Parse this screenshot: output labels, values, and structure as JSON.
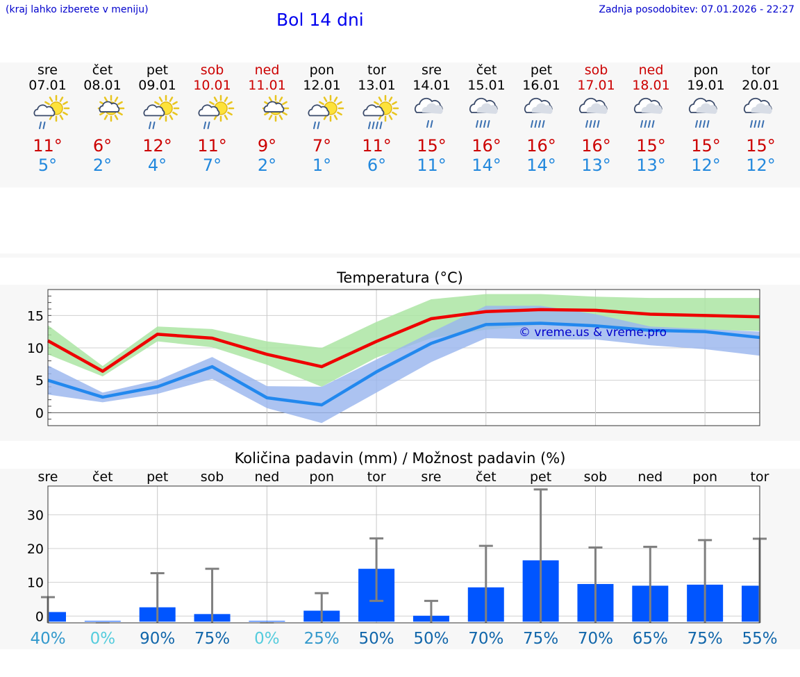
{
  "header": {
    "hint": "(kraj lahko izberete v meniju)",
    "title": "Bol 14 dni",
    "updated": "Zadnja posodobitev: 07.01.2026 - 22:27"
  },
  "days": [
    {
      "name": "sre",
      "date": "07.01",
      "weekend": false,
      "icon": "sun-cloud-rain-icon",
      "tmax": "11°",
      "tmin": "5°"
    },
    {
      "name": "čet",
      "date": "08.01",
      "weekend": false,
      "icon": "sun-cloud-icon",
      "tmax": "6°",
      "tmin": "2°"
    },
    {
      "name": "pet",
      "date": "09.01",
      "weekend": false,
      "icon": "sun-cloud-rain-icon",
      "tmax": "12°",
      "tmin": "4°"
    },
    {
      "name": "sob",
      "date": "10.01",
      "weekend": true,
      "icon": "sun-cloud-rain-icon",
      "tmax": "11°",
      "tmin": "7°"
    },
    {
      "name": "ned",
      "date": "11.01",
      "weekend": true,
      "icon": "sun-cloud-icon",
      "tmax": "9°",
      "tmin": "2°"
    },
    {
      "name": "pon",
      "date": "12.01",
      "weekend": false,
      "icon": "sun-cloud-rain-icon",
      "tmax": "7°",
      "tmin": "1°"
    },
    {
      "name": "tor",
      "date": "13.01",
      "weekend": false,
      "icon": "sun-cloud-heavy-rain-icon",
      "tmax": "11°",
      "tmin": "6°"
    },
    {
      "name": "sre",
      "date": "14.01",
      "weekend": false,
      "icon": "cloud-rain-icon",
      "tmax": "15°",
      "tmin": "11°"
    },
    {
      "name": "čet",
      "date": "15.01",
      "weekend": false,
      "icon": "cloud-heavy-rain-icon",
      "tmax": "16°",
      "tmin": "14°"
    },
    {
      "name": "pet",
      "date": "16.01",
      "weekend": false,
      "icon": "cloud-heavy-rain-icon",
      "tmax": "16°",
      "tmin": "14°"
    },
    {
      "name": "sob",
      "date": "17.01",
      "weekend": true,
      "icon": "cloud-heavy-rain-icon",
      "tmax": "16°",
      "tmin": "13°"
    },
    {
      "name": "ned",
      "date": "18.01",
      "weekend": true,
      "icon": "cloud-heavy-rain-icon",
      "tmax": "15°",
      "tmin": "13°"
    },
    {
      "name": "pon",
      "date": "19.01",
      "weekend": false,
      "icon": "cloud-heavy-rain-icon",
      "tmax": "15°",
      "tmin": "12°"
    },
    {
      "name": "tor",
      "date": "20.01",
      "weekend": false,
      "icon": "cloud-heavy-rain-icon",
      "tmax": "15°",
      "tmin": "12°"
    }
  ],
  "colors": {
    "tmax": "#ee0000",
    "tmin": "#2288ee",
    "tmax_band": "#a8e4a0",
    "tmin_band": "#9ab6ee",
    "bar": "#0055ff",
    "whisker": "#808080"
  },
  "chart_data": [
    {
      "type": "line",
      "title": "Temperatura (°C)",
      "watermark": "© vreme.us & vreme.pro",
      "ylim": [
        -2,
        19
      ],
      "yticks": [
        0,
        5,
        10,
        15
      ],
      "x": [
        0,
        1,
        2,
        3,
        4,
        5,
        6,
        7,
        8,
        9,
        10,
        11,
        12,
        13
      ],
      "series": [
        {
          "name": "max",
          "values": [
            11.1,
            6.4,
            12.1,
            11.5,
            9.0,
            7.1,
            11.0,
            14.5,
            15.6,
            15.9,
            15.8,
            15.2,
            15.0,
            14.8
          ]
        },
        {
          "name": "max_band_hi",
          "values": [
            13.5,
            7.2,
            13.3,
            12.9,
            11.0,
            10.0,
            14.0,
            17.5,
            18.3,
            18.3,
            17.9,
            17.7,
            17.7,
            17.7
          ]
        },
        {
          "name": "max_band_lo",
          "values": [
            9.0,
            5.6,
            11.0,
            10.1,
            7.4,
            4.0,
            8.5,
            11.5,
            12.8,
            13.5,
            13.4,
            12.9,
            12.8,
            12.6
          ]
        },
        {
          "name": "min",
          "values": [
            5.0,
            2.4,
            4.0,
            7.1,
            2.3,
            1.2,
            6.3,
            10.7,
            13.6,
            13.8,
            13.4,
            12.7,
            12.5,
            11.6
          ]
        },
        {
          "name": "min_band_hi",
          "values": [
            7.3,
            3.1,
            5.0,
            8.6,
            4.1,
            4.0,
            8.2,
            12.4,
            16.5,
            16.5,
            15.2,
            13.3,
            12.9,
            12.5
          ]
        },
        {
          "name": "min_band_lo",
          "values": [
            2.8,
            1.6,
            2.9,
            5.2,
            0.7,
            -1.6,
            3.1,
            7.8,
            11.5,
            11.3,
            11.3,
            10.4,
            9.8,
            8.8
          ]
        }
      ]
    },
    {
      "type": "bar",
      "title": "Količina padavin (mm) / Možnost padavin (%)",
      "ylim": [
        -2,
        38.5
      ],
      "yticks": [
        0,
        10,
        20,
        30
      ],
      "categories": [
        "sre",
        "čet",
        "pet",
        "sob",
        "ned",
        "pon",
        "tor",
        "sre",
        "čet",
        "pet",
        "sob",
        "ned",
        "pon",
        "tor"
      ],
      "values": [
        1.2,
        0,
        2.6,
        0.6,
        0,
        1.6,
        14.0,
        0.1,
        8.5,
        16.5,
        9.5,
        9.0,
        9.3,
        9.0
      ],
      "whisker_low": [
        0,
        0,
        0,
        0,
        0,
        0,
        4.5,
        0,
        0,
        0,
        0,
        0,
        0,
        0
      ],
      "whisker_high": [
        5.6,
        0,
        12.7,
        14.0,
        0,
        6.8,
        23.0,
        4.5,
        20.8,
        37.5,
        20.3,
        20.5,
        22.5,
        22.9
      ],
      "chance": [
        "40%",
        "0%",
        "90%",
        "75%",
        "0%",
        "25%",
        "50%",
        "50%",
        "70%",
        "75%",
        "70%",
        "65%",
        "75%",
        "55%"
      ],
      "chance_colors": [
        "#3399cc",
        "#55ccdd",
        "#1166aa",
        "#1166aa",
        "#55ccdd",
        "#3399cc",
        "#1166aa",
        "#1166aa",
        "#1166aa",
        "#1166aa",
        "#1166aa",
        "#1166aa",
        "#1166aa",
        "#1166aa"
      ]
    }
  ]
}
